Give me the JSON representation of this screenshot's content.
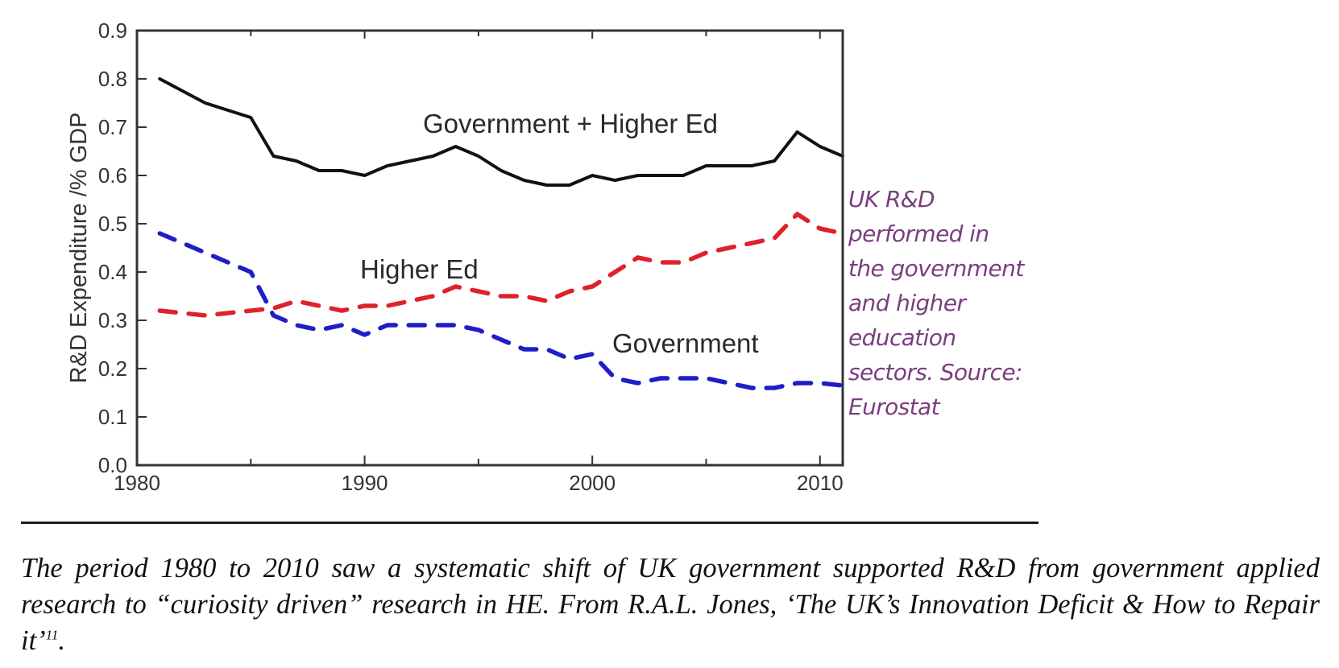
{
  "chart_data": {
    "type": "line",
    "title": "",
    "xlabel": "",
    "ylabel": "R&D Expenditure /% GDP",
    "xlim": [
      1980,
      2011
    ],
    "ylim": [
      0.0,
      0.9
    ],
    "x_ticks": [
      1980,
      1990,
      2000,
      2010
    ],
    "x_tick_labels": [
      "1980",
      "1990",
      "2000",
      "2010"
    ],
    "x_minor_ticks": [
      1985,
      1995,
      2005
    ],
    "y_ticks": [
      0.0,
      0.1,
      0.2,
      0.3,
      0.4,
      0.5,
      0.6,
      0.7,
      0.8,
      0.9
    ],
    "y_tick_labels": [
      "0.0",
      "0.1",
      "0.2",
      "0.3",
      "0.4",
      "0.5",
      "0.6",
      "0.7",
      "0.8",
      "0.9"
    ],
    "grid": false,
    "legend": "none (inline labels)",
    "x": [
      1981,
      1982,
      1983,
      1984,
      1985,
      1986,
      1987,
      1988,
      1989,
      1990,
      1991,
      1992,
      1993,
      1994,
      1995,
      1996,
      1997,
      1998,
      1999,
      2000,
      2001,
      2002,
      2003,
      2004,
      2005,
      2006,
      2007,
      2008,
      2009,
      2010,
      2011
    ],
    "series": [
      {
        "name": "Government + Higher Ed",
        "label": "Government + Higher Ed",
        "color": "#111111",
        "style": "solid",
        "values": [
          0.8,
          0.775,
          0.75,
          0.735,
          0.72,
          0.64,
          0.63,
          0.61,
          0.61,
          0.6,
          0.62,
          0.63,
          0.64,
          0.66,
          0.64,
          0.61,
          0.59,
          0.58,
          0.58,
          0.6,
          0.59,
          0.6,
          0.6,
          0.6,
          0.62,
          0.62,
          0.62,
          0.63,
          0.69,
          0.66,
          0.64
        ]
      },
      {
        "name": "Higher Ed",
        "label": "Higher Ed",
        "color": "#e0212b",
        "style": "dashed",
        "values": [
          0.32,
          0.315,
          0.31,
          0.315,
          0.32,
          0.325,
          0.34,
          0.33,
          0.32,
          0.33,
          0.33,
          0.34,
          0.35,
          0.37,
          0.36,
          0.35,
          0.35,
          0.34,
          0.36,
          0.37,
          0.4,
          0.43,
          0.42,
          0.42,
          0.44,
          0.45,
          0.46,
          0.47,
          0.52,
          0.49,
          0.48
        ]
      },
      {
        "name": "Government",
        "label": "Government",
        "color": "#1e1ec8",
        "style": "dashed",
        "values": [
          0.48,
          0.46,
          0.44,
          0.42,
          0.4,
          0.31,
          0.29,
          0.28,
          0.29,
          0.27,
          0.29,
          0.29,
          0.29,
          0.29,
          0.28,
          0.26,
          0.24,
          0.24,
          0.22,
          0.23,
          0.18,
          0.17,
          0.18,
          0.18,
          0.18,
          0.17,
          0.16,
          0.16,
          0.17,
          0.17,
          0.165
        ]
      }
    ]
  },
  "side_note": {
    "lines": [
      "UK R&D",
      "performed in",
      "the government",
      "and higher",
      "education",
      "sectors. Source:",
      "Eurostat"
    ],
    "color": "#7a3d7e"
  },
  "caption": {
    "text": "The period 1980 to 2010 saw a systematic shift of UK government supported R&D from government applied research to “curiosity driven” research in HE. From R.A.L. Jones, ‘The UK’s Innovation Deficit & How to Repair it’",
    "footnote": "11",
    "end": "."
  }
}
